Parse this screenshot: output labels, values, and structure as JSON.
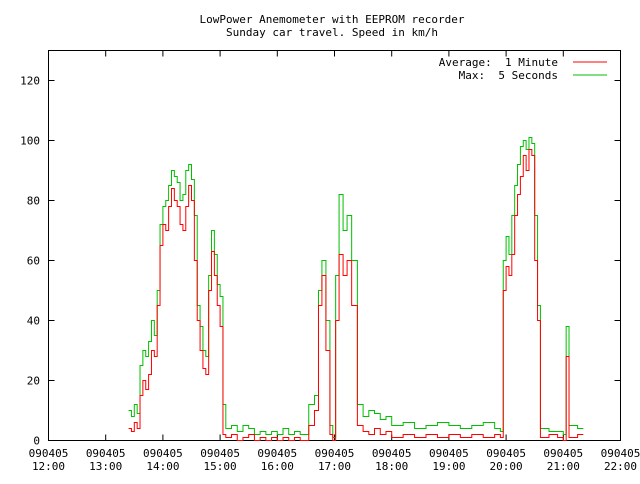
{
  "chart_data": {
    "type": "line",
    "title": "LowPower Anemometer with EEPROM recorder",
    "subtitle": "Sunday car travel. Speed in km/h",
    "xlabel": "",
    "ylabel": "",
    "xlim": [
      12,
      22
    ],
    "ylim": [
      0,
      130
    ],
    "grid": false,
    "legend_placement": "top-right",
    "y_ticks": [
      0,
      20,
      40,
      60,
      80,
      100,
      120
    ],
    "x_ticks": [
      {
        "value": 12,
        "date": "090405",
        "time": "12:00"
      },
      {
        "value": 13,
        "date": "090405",
        "time": "13:00"
      },
      {
        "value": 14,
        "date": "090405",
        "time": "14:00"
      },
      {
        "value": 15,
        "date": "090405",
        "time": "15:00"
      },
      {
        "value": 16,
        "date": "090405",
        "time": "16:00"
      },
      {
        "value": 17,
        "date": "090405",
        "time": "17:00"
      },
      {
        "value": 18,
        "date": "090405",
        "time": "18:00"
      },
      {
        "value": 19,
        "date": "090405",
        "time": "19:00"
      },
      {
        "value": 20,
        "date": "090405",
        "time": "20:00"
      },
      {
        "value": 21,
        "date": "090405",
        "time": "21:00"
      },
      {
        "value": 22,
        "date": "090405",
        "time": "22:00"
      }
    ],
    "series": [
      {
        "name": "Average:  1 Minute",
        "color": "#ff0000",
        "key": "avg"
      },
      {
        "name": "Max:  5 Seconds",
        "color": "#00c000",
        "key": "max"
      }
    ],
    "points": [
      [
        13.4,
        4,
        10
      ],
      [
        13.45,
        3,
        8
      ],
      [
        13.5,
        6,
        12
      ],
      [
        13.55,
        4,
        9
      ],
      [
        13.6,
        15,
        25
      ],
      [
        13.65,
        20,
        30
      ],
      [
        13.7,
        17,
        28
      ],
      [
        13.75,
        22,
        33
      ],
      [
        13.8,
        30,
        40
      ],
      [
        13.85,
        28,
        35
      ],
      [
        13.9,
        45,
        50
      ],
      [
        13.95,
        65,
        72
      ],
      [
        14.0,
        72,
        78
      ],
      [
        14.05,
        70,
        80
      ],
      [
        14.1,
        78,
        85
      ],
      [
        14.15,
        84,
        90
      ],
      [
        14.2,
        80,
        88
      ],
      [
        14.25,
        78,
        86
      ],
      [
        14.3,
        72,
        80
      ],
      [
        14.35,
        70,
        82
      ],
      [
        14.4,
        78,
        90
      ],
      [
        14.45,
        85,
        92
      ],
      [
        14.5,
        80,
        87
      ],
      [
        14.55,
        60,
        75
      ],
      [
        14.6,
        40,
        45
      ],
      [
        14.65,
        30,
        38
      ],
      [
        14.7,
        24,
        30
      ],
      [
        14.75,
        22,
        28
      ],
      [
        14.8,
        50,
        55
      ],
      [
        14.85,
        63,
        70
      ],
      [
        14.9,
        55,
        62
      ],
      [
        14.95,
        45,
        52
      ],
      [
        15.0,
        38,
        48
      ],
      [
        15.05,
        2,
        12
      ],
      [
        15.1,
        1,
        4
      ],
      [
        15.2,
        2,
        5
      ],
      [
        15.3,
        0,
        3
      ],
      [
        15.4,
        1,
        5
      ],
      [
        15.5,
        2,
        4
      ],
      [
        15.6,
        0,
        2
      ],
      [
        15.7,
        1,
        3
      ],
      [
        15.8,
        0,
        2
      ],
      [
        15.9,
        1,
        3
      ],
      [
        16.0,
        0,
        2
      ],
      [
        16.1,
        1,
        4
      ],
      [
        16.2,
        0,
        2
      ],
      [
        16.3,
        1,
        3
      ],
      [
        16.4,
        0,
        2
      ],
      [
        16.55,
        5,
        12
      ],
      [
        16.65,
        10,
        15
      ],
      [
        16.72,
        45,
        50
      ],
      [
        16.78,
        55,
        60
      ],
      [
        16.85,
        30,
        40
      ],
      [
        16.92,
        2,
        5
      ],
      [
        16.97,
        0,
        1
      ],
      [
        17.02,
        40,
        55
      ],
      [
        17.08,
        62,
        82
      ],
      [
        17.15,
        55,
        70
      ],
      [
        17.22,
        60,
        75
      ],
      [
        17.3,
        45,
        60
      ],
      [
        17.4,
        5,
        12
      ],
      [
        17.5,
        3,
        8
      ],
      [
        17.6,
        2,
        10
      ],
      [
        17.7,
        4,
        9
      ],
      [
        17.8,
        2,
        7
      ],
      [
        17.9,
        3,
        8
      ],
      [
        18.0,
        1,
        5
      ],
      [
        18.2,
        2,
        6
      ],
      [
        18.4,
        1,
        4
      ],
      [
        18.6,
        2,
        5
      ],
      [
        18.8,
        1,
        6
      ],
      [
        19.0,
        2,
        5
      ],
      [
        19.2,
        1,
        4
      ],
      [
        19.4,
        2,
        5
      ],
      [
        19.6,
        1,
        6
      ],
      [
        19.8,
        2,
        4
      ],
      [
        19.9,
        1,
        3
      ],
      [
        19.95,
        50,
        60
      ],
      [
        20.0,
        58,
        68
      ],
      [
        20.05,
        55,
        62
      ],
      [
        20.1,
        62,
        75
      ],
      [
        20.15,
        75,
        85
      ],
      [
        20.2,
        82,
        92
      ],
      [
        20.25,
        88,
        98
      ],
      [
        20.3,
        95,
        100
      ],
      [
        20.35,
        90,
        97
      ],
      [
        20.4,
        97,
        101
      ],
      [
        20.45,
        95,
        99
      ],
      [
        20.5,
        60,
        75
      ],
      [
        20.55,
        40,
        45
      ],
      [
        20.6,
        1,
        4
      ],
      [
        20.75,
        2,
        3
      ],
      [
        20.9,
        1,
        3
      ],
      [
        21.0,
        0,
        2
      ],
      [
        21.05,
        28,
        38
      ],
      [
        21.1,
        1,
        5
      ],
      [
        21.25,
        2,
        4
      ],
      [
        21.35,
        2,
        4
      ]
    ]
  }
}
